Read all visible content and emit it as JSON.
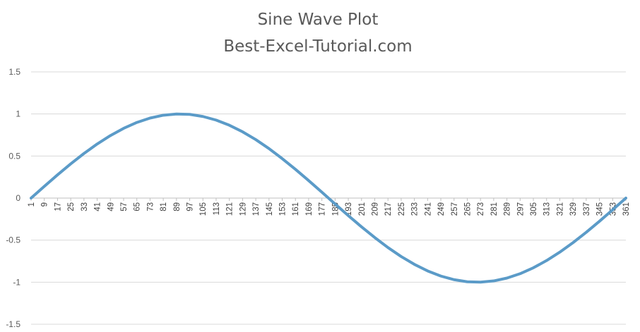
{
  "chart_data": {
    "type": "line",
    "title": "Sine Wave Plot",
    "subtitle": "Best-Excel-Tutorial.com",
    "xlabel": "",
    "ylabel": "",
    "x_range": [
      1,
      361
    ],
    "x_tick_labels": [
      "1",
      "9",
      "17",
      "25",
      "33",
      "41",
      "49",
      "57",
      "65",
      "73",
      "81",
      "89",
      "97",
      "105",
      "113",
      "121",
      "129",
      "137",
      "145",
      "153",
      "161",
      "169",
      "177",
      "185",
      "193",
      "201",
      "209",
      "217",
      "225",
      "233",
      "241",
      "249",
      "257",
      "265",
      "273",
      "281",
      "289",
      "297",
      "305",
      "313",
      "321",
      "329",
      "337",
      "345",
      "353",
      "361"
    ],
    "y_tick_labels": [
      "1.5",
      "1",
      "0.5",
      "0",
      "-0.5",
      "-1",
      "-1.5"
    ],
    "y_ticks": [
      1.5,
      1,
      0.5,
      0,
      -0.5,
      -1,
      -1.5
    ],
    "ylim": [
      -1.5,
      1.5
    ],
    "grid": true,
    "legend": "none",
    "series": [
      {
        "color": "#5b9bc8",
        "x": [
          1,
          9,
          17,
          25,
          33,
          41,
          49,
          57,
          65,
          73,
          81,
          89,
          97,
          105,
          113,
          121,
          129,
          137,
          145,
          153,
          161,
          169,
          177,
          185,
          193,
          201,
          209,
          217,
          225,
          233,
          241,
          249,
          257,
          265,
          273,
          281,
          289,
          297,
          305,
          313,
          321,
          329,
          337,
          345,
          353,
          361
        ],
        "values": [
          0.0,
          0.139,
          0.276,
          0.407,
          0.53,
          0.643,
          0.743,
          0.829,
          0.899,
          0.951,
          0.985,
          0.999,
          0.995,
          0.97,
          0.927,
          0.866,
          0.788,
          0.695,
          0.588,
          0.469,
          0.342,
          0.208,
          0.07,
          -0.07,
          -0.208,
          -0.342,
          -0.469,
          -0.588,
          -0.695,
          -0.788,
          -0.866,
          -0.927,
          -0.97,
          -0.995,
          -0.999,
          -0.985,
          -0.951,
          -0.899,
          -0.829,
          -0.743,
          -0.643,
          -0.53,
          -0.407,
          -0.276,
          -0.139,
          0.0
        ]
      }
    ]
  }
}
